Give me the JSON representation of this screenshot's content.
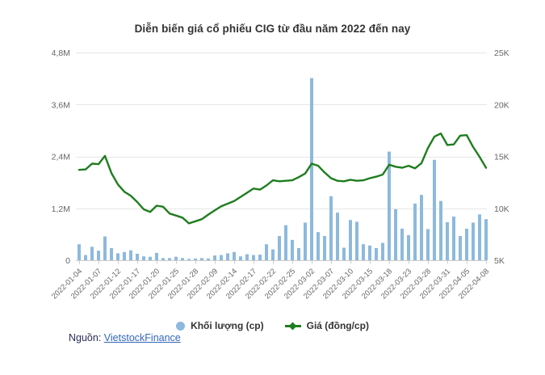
{
  "title": "Diễn biến giá cổ phiếu CIG từ đầu năm 2022 đến nay",
  "legend": {
    "volume_label": "Khối lượng (cp)",
    "price_label": "Giá (đồng/cp)"
  },
  "source": {
    "prefix": "Nguồn:",
    "link_text": "VietstockFinance"
  },
  "colors": {
    "volume_bar": "#8db9dd",
    "price_line": "#1e7d1e",
    "grid": "#e6e6e6",
    "axis_line": "#cccccc",
    "tick_label": "#666666",
    "title_text": "#333333"
  },
  "chart_data": {
    "type": "combo",
    "categories": [
      "2022-01-04",
      "2022-01-05",
      "2022-01-06",
      "2022-01-07",
      "2022-01-10",
      "2022-01-11",
      "2022-01-12",
      "2022-01-13",
      "2022-01-14",
      "2022-01-17",
      "2022-01-18",
      "2022-01-19",
      "2022-01-20",
      "2022-01-21",
      "2022-01-24",
      "2022-01-25",
      "2022-01-26",
      "2022-01-27",
      "2022-01-28",
      "2022-02-07",
      "2022-02-08",
      "2022-02-09",
      "2022-02-10",
      "2022-02-11",
      "2022-02-14",
      "2022-02-15",
      "2022-02-16",
      "2022-02-17",
      "2022-02-18",
      "2022-02-21",
      "2022-02-22",
      "2022-02-23",
      "2022-02-24",
      "2022-02-25",
      "2022-02-28",
      "2022-03-01",
      "2022-03-02",
      "2022-03-03",
      "2022-03-04",
      "2022-03-07",
      "2022-03-08",
      "2022-03-09",
      "2022-03-10",
      "2022-03-11",
      "2022-03-14",
      "2022-03-15",
      "2022-03-16",
      "2022-03-17",
      "2022-03-18",
      "2022-03-21",
      "2022-03-22",
      "2022-03-23",
      "2022-03-24",
      "2022-03-25",
      "2022-03-28",
      "2022-03-29",
      "2022-03-30",
      "2022-03-31",
      "2022-04-01",
      "2022-04-04",
      "2022-04-05",
      "2022-04-06",
      "2022-04-07",
      "2022-04-08"
    ],
    "x_tick_labels": [
      "2022-01-04",
      "2022-01-07",
      "2022-01-12",
      "2022-01-17",
      "2022-01-20",
      "2022-01-25",
      "2022-01-28",
      "2022-02-09",
      "2022-02-14",
      "2022-02-17",
      "2022-02-22",
      "2022-02-25",
      "2022-03-02",
      "2022-03-07",
      "2022-03-10",
      "2022-03-15",
      "2022-03-18",
      "2022-03-23",
      "2022-03-28",
      "2022-03-31",
      "2022-04-05",
      "2022-04-08"
    ],
    "x_tick_every": 3,
    "series": [
      {
        "name": "Khối lượng (cp)",
        "type": "bar",
        "axis": "left",
        "color": "#8db9dd",
        "values": [
          370000,
          120000,
          310000,
          220000,
          550000,
          280000,
          160000,
          190000,
          230000,
          150000,
          90000,
          80000,
          170000,
          50000,
          50000,
          80000,
          50000,
          30000,
          40000,
          50000,
          40000,
          110000,
          120000,
          160000,
          190000,
          90000,
          140000,
          120000,
          130000,
          370000,
          250000,
          560000,
          810000,
          470000,
          280000,
          870000,
          4210000,
          650000,
          560000,
          1480000,
          1100000,
          290000,
          930000,
          890000,
          370000,
          340000,
          280000,
          400000,
          2510000,
          1180000,
          730000,
          580000,
          1310000,
          1510000,
          720000,
          2320000,
          1370000,
          880000,
          1010000,
          560000,
          730000,
          870000,
          1060000,
          950000
        ]
      },
      {
        "name": "Giá (đồng/cp)",
        "type": "line",
        "axis": "right",
        "color": "#1e7d1e",
        "values": [
          13700,
          13750,
          14300,
          14250,
          15050,
          13400,
          12300,
          11600,
          11200,
          10600,
          9900,
          9650,
          10250,
          10150,
          9500,
          9300,
          9100,
          8550,
          8750,
          8950,
          9400,
          9800,
          10200,
          10450,
          10700,
          11100,
          11500,
          11900,
          11800,
          12200,
          12700,
          12600,
          12650,
          12700,
          13000,
          13350,
          14300,
          14100,
          13450,
          12900,
          12650,
          12600,
          12750,
          12650,
          12700,
          12900,
          13050,
          13250,
          14200,
          14000,
          13900,
          14100,
          13850,
          14350,
          15800,
          16900,
          17200,
          16100,
          16150,
          17000,
          17050,
          15900,
          14950,
          13900
        ]
      }
    ],
    "left_axis": {
      "labels": [
        "0",
        "1,2M",
        "2,4M",
        "3,6M",
        "4,8M"
      ],
      "values": [
        0,
        1200000,
        2400000,
        3600000,
        4800000
      ],
      "min": 0,
      "max": 4800000
    },
    "right_axis": {
      "labels": [
        "5K",
        "10K",
        "15K",
        "20K",
        "25K"
      ],
      "values": [
        5000,
        10000,
        15000,
        20000,
        25000
      ],
      "min": 5000,
      "max": 25000
    },
    "grid": true,
    "legend_position": "bottom"
  }
}
